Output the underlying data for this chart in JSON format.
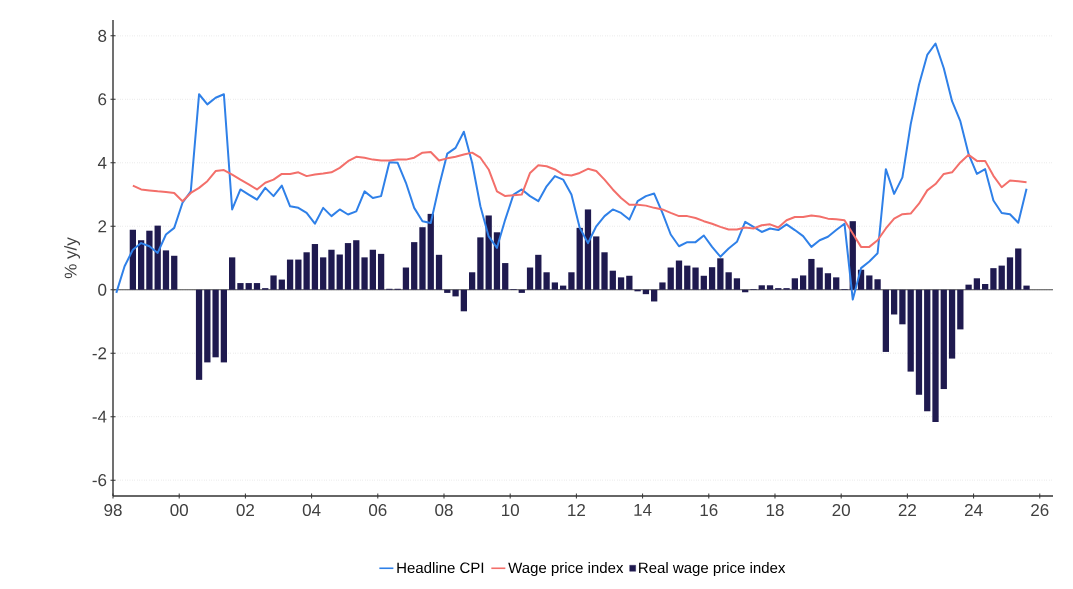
{
  "chart_data": {
    "type": "line",
    "ylabel": "% y/y",
    "x": [
      1998.1,
      1998.35,
      1998.6,
      1998.85,
      1999.1,
      1999.35,
      1999.6,
      1999.85,
      2000.1,
      2000.35,
      2000.6,
      2000.85,
      2001.1,
      2001.35,
      2001.6,
      2001.85,
      2002.1,
      2002.35,
      2002.6,
      2002.85,
      2003.1,
      2003.35,
      2003.6,
      2003.85,
      2004.1,
      2004.35,
      2004.6,
      2004.85,
      2005.1,
      2005.35,
      2005.6,
      2005.85,
      2006.1,
      2006.35,
      2006.6,
      2006.85,
      2007.1,
      2007.35,
      2007.6,
      2007.85,
      2008.1,
      2008.35,
      2008.6,
      2008.85,
      2009.1,
      2009.35,
      2009.6,
      2009.85,
      2010.1,
      2010.35,
      2010.6,
      2010.85,
      2011.1,
      2011.35,
      2011.6,
      2011.85,
      2012.1,
      2012.35,
      2012.6,
      2012.85,
      2013.1,
      2013.35,
      2013.6,
      2013.85,
      2014.1,
      2014.35,
      2014.6,
      2014.85,
      2015.1,
      2015.35,
      2015.6,
      2015.85,
      2016.1,
      2016.35,
      2016.6,
      2016.85,
      2017.1,
      2017.35,
      2017.6,
      2017.85,
      2018.1,
      2018.35,
      2018.6,
      2018.85,
      2019.1,
      2019.35,
      2019.6,
      2019.85,
      2020.1,
      2020.35,
      2020.6,
      2020.85,
      2021.1,
      2021.35,
      2021.6,
      2021.85,
      2022.1,
      2022.35,
      2022.6,
      2022.85,
      2023.1,
      2023.35,
      2023.6,
      2023.85,
      2024.1,
      2024.35,
      2024.6,
      2024.85,
      2025.1,
      2025.35,
      2025.6
    ],
    "series": [
      {
        "name": "Headline CPI",
        "color": "#2f80e8",
        "values": [
          -0.1,
          0.74,
          1.26,
          1.47,
          1.37,
          1.16,
          1.74,
          1.95,
          2.74,
          3.1,
          6.16,
          5.84,
          6.05,
          6.16,
          2.53,
          3.16,
          3.0,
          2.84,
          3.21,
          2.95,
          3.28,
          2.63,
          2.58,
          2.42,
          2.08,
          2.58,
          2.32,
          2.53,
          2.37,
          2.47,
          3.1,
          2.89,
          2.95,
          4.02,
          4.0,
          3.37,
          2.58,
          2.16,
          2.1,
          3.26,
          4.29,
          4.47,
          4.98,
          4.0,
          2.63,
          1.68,
          1.32,
          2.21,
          3.0,
          3.16,
          2.95,
          2.79,
          3.26,
          3.58,
          3.47,
          3.0,
          1.95,
          1.47,
          2.0,
          2.32,
          2.53,
          2.42,
          2.21,
          2.79,
          2.95,
          3.03,
          2.42,
          1.74,
          1.37,
          1.5,
          1.5,
          1.71,
          1.35,
          1.04,
          1.3,
          1.51,
          2.14,
          1.98,
          1.82,
          1.93,
          1.88,
          2.06,
          1.88,
          1.69,
          1.35,
          1.56,
          1.67,
          1.88,
          2.08,
          -0.31,
          0.68,
          0.89,
          1.15,
          3.8,
          3.02,
          3.54,
          5.21,
          6.46,
          7.4,
          7.76,
          6.98,
          5.94,
          5.31,
          4.27,
          3.65,
          3.8,
          2.81,
          2.42,
          2.38,
          2.11,
          3.18
        ]
      },
      {
        "name": "Wage price index",
        "color": "#f36f6a",
        "values": [
          null,
          null,
          3.28,
          3.16,
          3.13,
          3.1,
          3.08,
          3.05,
          2.79,
          3.05,
          3.21,
          3.42,
          3.74,
          3.77,
          3.63,
          3.47,
          3.32,
          3.16,
          3.37,
          3.47,
          3.65,
          3.65,
          3.7,
          3.58,
          3.63,
          3.66,
          3.7,
          3.84,
          4.05,
          4.19,
          4.16,
          4.1,
          4.07,
          4.07,
          4.1,
          4.1,
          4.16,
          4.32,
          4.34,
          4.07,
          4.14,
          4.19,
          4.26,
          4.32,
          4.16,
          3.79,
          3.1,
          2.95,
          2.98,
          3.0,
          3.68,
          3.92,
          3.89,
          3.79,
          3.63,
          3.6,
          3.68,
          3.81,
          3.74,
          3.47,
          3.16,
          2.89,
          2.68,
          2.68,
          2.65,
          2.58,
          2.53,
          2.42,
          2.32,
          2.32,
          2.26,
          2.16,
          2.08,
          1.98,
          1.9,
          1.9,
          1.96,
          1.93,
          2.03,
          2.06,
          1.96,
          2.19,
          2.29,
          2.29,
          2.34,
          2.31,
          2.24,
          2.22,
          2.19,
          1.77,
          1.35,
          1.35,
          1.56,
          1.93,
          2.24,
          2.38,
          2.4,
          2.71,
          3.13,
          3.33,
          3.65,
          3.7,
          4.01,
          4.25,
          4.06,
          4.06,
          3.59,
          3.23,
          3.44,
          3.42,
          3.39
        ]
      },
      {
        "name": "Real wage price index",
        "type": "bar",
        "color": "#1f1a4f",
        "values": [
          null,
          null,
          1.89,
          1.56,
          1.86,
          2.02,
          1.24,
          1.07,
          null,
          null,
          -2.84,
          -2.29,
          -2.13,
          -2.29,
          1.02,
          0.21,
          0.21,
          0.21,
          0.05,
          0.45,
          0.32,
          0.95,
          0.95,
          1.18,
          1.44,
          1.02,
          1.26,
          1.11,
          1.47,
          1.56,
          1.02,
          1.26,
          1.13,
          0.03,
          0.03,
          0.7,
          1.5,
          1.97,
          2.39,
          1.1,
          -0.1,
          -0.21,
          -0.68,
          0.55,
          1.65,
          2.34,
          1.81,
          0.84,
          0.02,
          -0.1,
          0.7,
          1.1,
          0.55,
          0.23,
          0.13,
          0.55,
          1.95,
          2.53,
          1.68,
          1.18,
          0.6,
          0.39,
          0.44,
          -0.05,
          -0.14,
          -0.37,
          0.23,
          0.7,
          0.92,
          0.76,
          0.7,
          0.44,
          0.71,
          0.99,
          0.55,
          0.36,
          -0.08,
          0.02,
          0.14,
          0.14,
          0.05,
          0.05,
          0.36,
          0.45,
          0.97,
          0.7,
          0.52,
          0.39,
          0.02,
          2.16,
          0.63,
          0.45,
          0.33,
          -1.96,
          -0.78,
          -1.09,
          -2.58,
          -3.31,
          -3.83,
          -4.17,
          -3.13,
          -2.17,
          -1.25,
          0.16,
          0.36,
          0.18,
          0.68,
          0.76,
          1.02,
          1.3,
          0.13
        ]
      }
    ],
    "xlim": [
      1998,
      2026.4
    ],
    "ylim": [
      -6.5,
      8.5
    ],
    "xticks": [
      {
        "value": 1998,
        "label": "98"
      },
      {
        "value": 2000,
        "label": "00"
      },
      {
        "value": 2002,
        "label": "02"
      },
      {
        "value": 2004,
        "label": "04"
      },
      {
        "value": 2006,
        "label": "06"
      },
      {
        "value": 2008,
        "label": "08"
      },
      {
        "value": 2010,
        "label": "10"
      },
      {
        "value": 2012,
        "label": "12"
      },
      {
        "value": 2014,
        "label": "14"
      },
      {
        "value": 2016,
        "label": "16"
      },
      {
        "value": 2018,
        "label": "18"
      },
      {
        "value": 2020,
        "label": "20"
      },
      {
        "value": 2022,
        "label": "22"
      },
      {
        "value": 2024,
        "label": "24"
      },
      {
        "value": 2026,
        "label": "26"
      }
    ],
    "yticks": [
      -6,
      -4,
      -2,
      0,
      2,
      4,
      6,
      8
    ],
    "grid": "y",
    "legend": "bottom",
    "marker": "none",
    "line_style": "solid"
  }
}
